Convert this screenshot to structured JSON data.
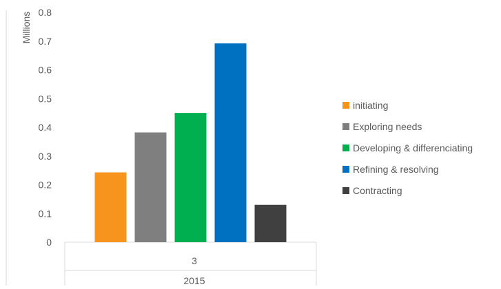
{
  "chart_data": {
    "type": "bar",
    "title": "",
    "ylabel": "Millions",
    "xlabel": "",
    "ylim": [
      0,
      0.8
    ],
    "yticks": [
      "0",
      "0.1",
      "0.2",
      "0.3",
      "0.4",
      "0.5",
      "0.6",
      "0.7",
      "0.8"
    ],
    "category_levels": {
      "inner": "3",
      "outer": "2015"
    },
    "series": [
      {
        "name": "initiating",
        "value": 0.243,
        "color": "#F7941D"
      },
      {
        "name": "Exploring needs",
        "value": 0.382,
        "color": "#7F7F7F"
      },
      {
        "name": "Developing & differenciating",
        "value": 0.45,
        "color": "#00B050"
      },
      {
        "name": "Refining & resolving",
        "value": 0.692,
        "color": "#0070C0"
      },
      {
        "name": "Contracting",
        "value": 0.13,
        "color": "#404040"
      }
    ],
    "grid": false,
    "legend_position": "right"
  }
}
